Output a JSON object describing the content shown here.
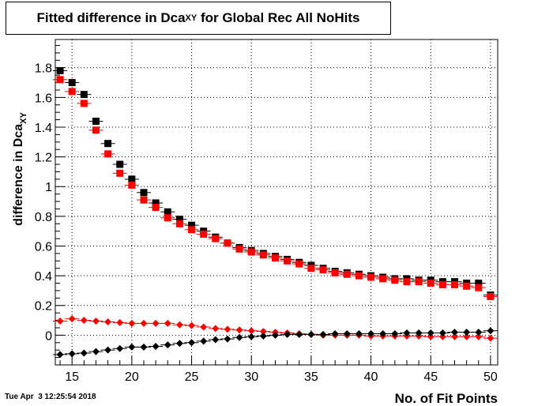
{
  "chart_data": {
    "type": "scatter",
    "title": {
      "prefix": "Fitted difference in Dca",
      "sub": "XY",
      "suffix": " for Global Rec All NoHits"
    },
    "xlabel": "No. of Fit Points",
    "ylabel": {
      "main": "difference in Dca",
      "sub": "XY"
    },
    "xlim": [
      13.6,
      50.6
    ],
    "ylim": [
      -0.2,
      1.99
    ],
    "xticks": [
      15,
      20,
      25,
      30,
      35,
      40,
      45,
      50
    ],
    "yticks": [
      0,
      0.2,
      0.4,
      0.6,
      0.8,
      1,
      1.2,
      1.4,
      1.6,
      1.8
    ],
    "grid": true,
    "x": [
      14,
      15,
      16,
      17,
      18,
      19,
      20,
      21,
      22,
      23,
      24,
      25,
      26,
      27,
      28,
      29,
      30,
      31,
      32,
      33,
      34,
      35,
      36,
      37,
      38,
      39,
      40,
      41,
      42,
      43,
      44,
      45,
      46,
      47,
      48,
      49,
      50
    ],
    "series": [
      {
        "marker": "square",
        "color": "#000000",
        "values": [
          1.78,
          1.7,
          1.62,
          1.44,
          1.29,
          1.15,
          1.05,
          0.96,
          0.89,
          0.83,
          0.78,
          0.74,
          0.7,
          0.66,
          0.62,
          0.59,
          0.57,
          0.55,
          0.53,
          0.51,
          0.49,
          0.47,
          0.45,
          0.43,
          0.42,
          0.41,
          0.4,
          0.39,
          0.38,
          0.38,
          0.37,
          0.37,
          0.36,
          0.36,
          0.35,
          0.35,
          0.27
        ]
      },
      {
        "marker": "square",
        "color": "#ff0000",
        "values": [
          1.72,
          1.64,
          1.56,
          1.38,
          1.22,
          1.09,
          1.01,
          0.91,
          0.86,
          0.79,
          0.75,
          0.71,
          0.68,
          0.65,
          0.62,
          0.58,
          0.56,
          0.54,
          0.52,
          0.5,
          0.48,
          0.45,
          0.44,
          0.42,
          0.41,
          0.4,
          0.39,
          0.38,
          0.37,
          0.36,
          0.36,
          0.35,
          0.34,
          0.34,
          0.33,
          0.32,
          0.26
        ]
      },
      {
        "marker": "diamond",
        "color": "#ff0000",
        "values": [
          0.095,
          0.11,
          0.1,
          0.095,
          0.09,
          0.085,
          0.08,
          0.08,
          0.08,
          0.08,
          0.07,
          0.065,
          0.055,
          0.045,
          0.04,
          0.035,
          0.03,
          0.025,
          0.02,
          0.015,
          0.01,
          0.005,
          0.0,
          0.0,
          0.0,
          0.0,
          -0.005,
          -0.005,
          -0.005,
          -0.005,
          -0.005,
          -0.01,
          -0.01,
          -0.01,
          -0.01,
          -0.01,
          -0.02
        ]
      },
      {
        "marker": "diamond",
        "color": "#000000",
        "values": [
          -0.13,
          -0.125,
          -0.12,
          -0.11,
          -0.1,
          -0.09,
          -0.08,
          -0.08,
          -0.075,
          -0.065,
          -0.055,
          -0.05,
          -0.04,
          -0.03,
          -0.025,
          -0.015,
          -0.01,
          -0.005,
          0.0,
          0.005,
          0.005,
          0.005,
          0.005,
          0.01,
          0.01,
          0.01,
          0.01,
          0.01,
          0.01,
          0.015,
          0.015,
          0.015,
          0.015,
          0.02,
          0.02,
          0.02,
          0.03
        ]
      }
    ]
  },
  "footer": "Tue Apr  3 12:25:54 2018"
}
